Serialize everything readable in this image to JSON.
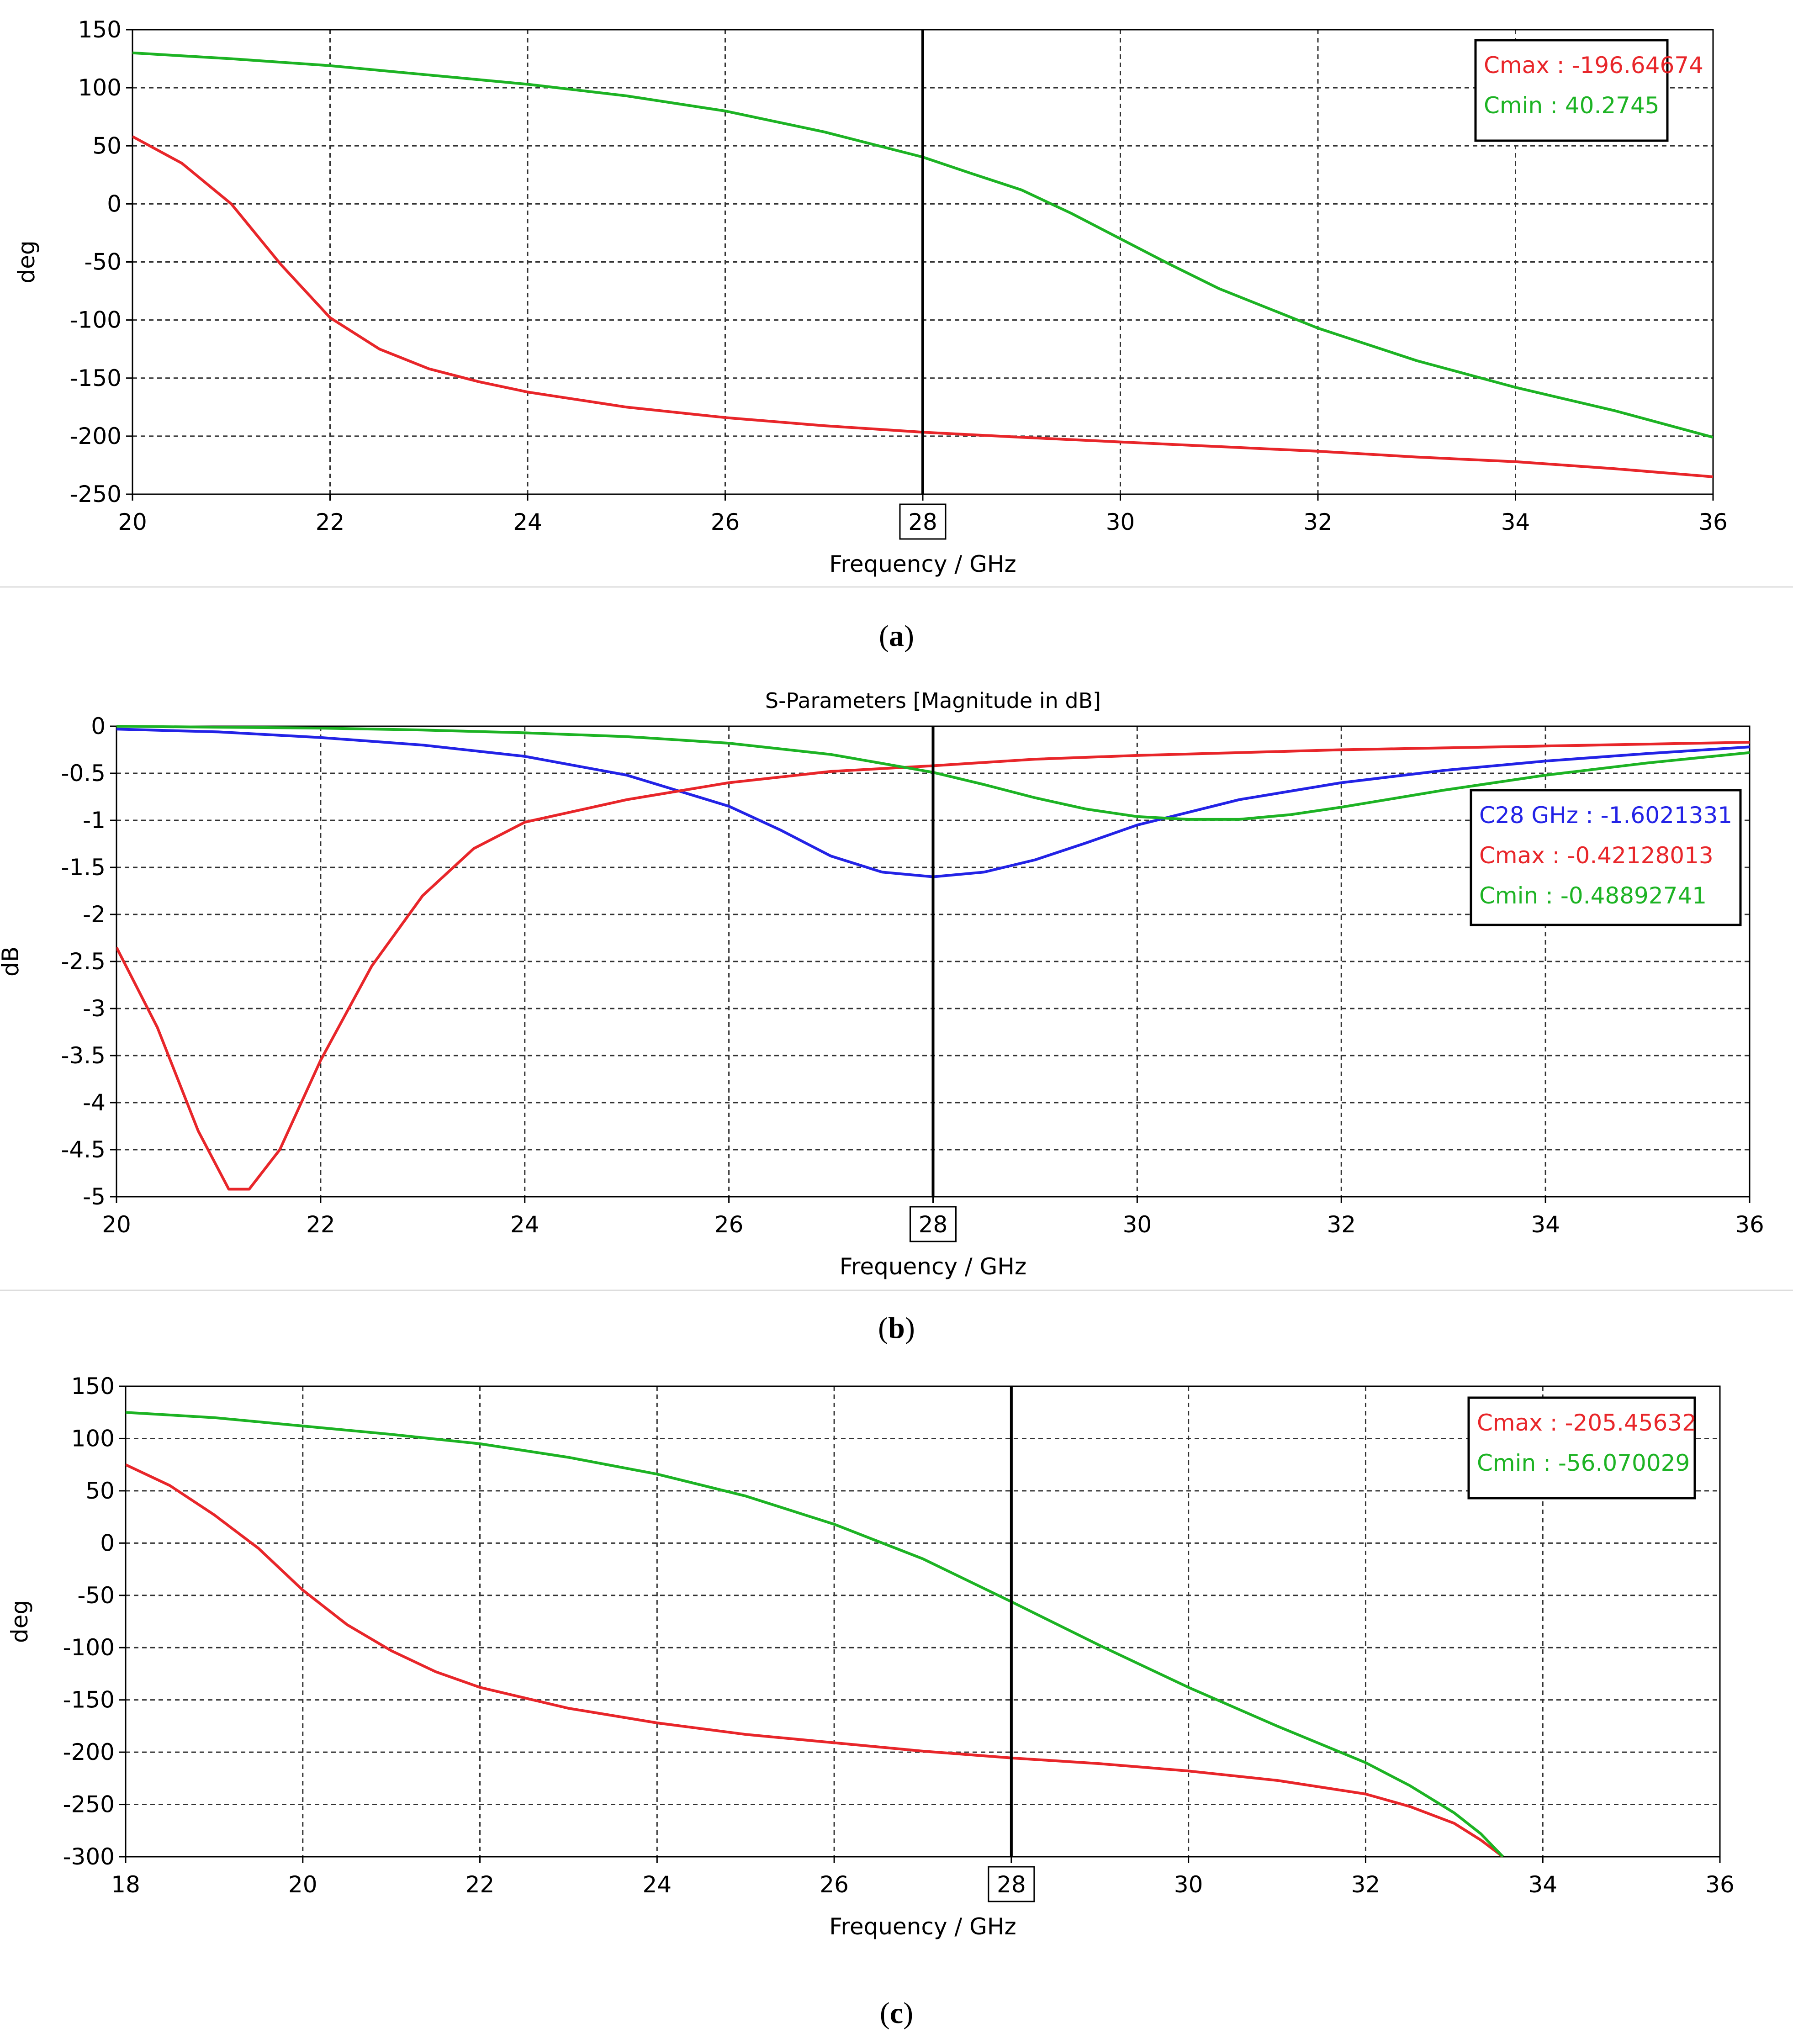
{
  "colors": {
    "red": "#e8262a",
    "green": "#1db324",
    "blue": "#2323e6",
    "grid": "#333333",
    "marker": "#000000"
  },
  "chart_data": [
    {
      "id": "a",
      "type": "line",
      "caption": "a",
      "title": "",
      "xlabel": "Frequency / GHz",
      "ylabel": "deg",
      "xlim": [
        20,
        36
      ],
      "ylim": [
        -250,
        150
      ],
      "xticks": [
        20,
        22,
        24,
        26,
        28,
        30,
        32,
        34,
        36
      ],
      "yticks": [
        150,
        100,
        50,
        0,
        -50,
        -100,
        -150,
        -200,
        -250
      ],
      "marker_x": 28,
      "marker_label": "28",
      "legend": [
        {
          "label": "Cmax : -196.64674",
          "color": "#e8262a"
        },
        {
          "label": "Cmin : 40.2745",
          "color": "#1db324"
        }
      ],
      "series": [
        {
          "name": "Cmax",
          "color": "#e8262a",
          "x": [
            20,
            20.5,
            21,
            21.5,
            22,
            22.5,
            23,
            23.5,
            24,
            25,
            26,
            27,
            28,
            29,
            30,
            31,
            32,
            33,
            34,
            35,
            36
          ],
          "y": [
            58,
            35,
            0,
            -52,
            -98,
            -125,
            -142,
            -153,
            -162,
            -175,
            -184,
            -191,
            -196.6,
            -201,
            -205,
            -209,
            -213,
            -218,
            -222,
            -228,
            -235
          ]
        },
        {
          "name": "Cmin",
          "color": "#1db324",
          "x": [
            20,
            21,
            22,
            23,
            24,
            25,
            26,
            27,
            28,
            28.5,
            29,
            29.5,
            30,
            30.5,
            31,
            32,
            33,
            34,
            35,
            36
          ],
          "y": [
            130,
            125,
            119,
            111,
            103,
            93,
            80,
            62,
            40.3,
            26,
            12,
            -8,
            -30,
            -52,
            -73,
            -107,
            -135,
            -158,
            -178,
            -201
          ]
        }
      ]
    },
    {
      "id": "b",
      "type": "line",
      "caption": "b",
      "title": "S-Parameters [Magnitude in dB]",
      "xlabel": "Frequency / GHz",
      "ylabel": "dB",
      "xlim": [
        20,
        36
      ],
      "ylim": [
        -5,
        0
      ],
      "xticks": [
        20,
        22,
        24,
        26,
        28,
        30,
        32,
        34,
        36
      ],
      "yticks": [
        "0",
        "-0.5",
        "-1",
        "-1.5",
        "-2",
        "-2.5",
        "-3",
        "-3.5",
        "-4",
        "-4.5",
        "-5"
      ],
      "marker_x": 28,
      "marker_label": "28",
      "legend": [
        {
          "label": "C28 GHz : -1.6021331",
          "color": "#2323e6"
        },
        {
          "label": "Cmax : -0.42128013",
          "color": "#e8262a"
        },
        {
          "label": "Cmin : -0.48892741",
          "color": "#1db324"
        }
      ],
      "series": [
        {
          "name": "C28 GHz",
          "color": "#2323e6",
          "x": [
            20,
            21,
            22,
            23,
            24,
            25,
            26,
            26.5,
            27,
            27.5,
            28,
            28.5,
            29,
            29.5,
            30,
            31,
            32,
            33,
            34,
            35,
            36
          ],
          "y": [
            -0.03,
            -0.06,
            -0.12,
            -0.2,
            -0.32,
            -0.52,
            -0.85,
            -1.1,
            -1.38,
            -1.55,
            -1.6,
            -1.55,
            -1.42,
            -1.24,
            -1.05,
            -0.78,
            -0.6,
            -0.47,
            -0.37,
            -0.29,
            -0.22
          ]
        },
        {
          "name": "Cmax",
          "color": "#e8262a",
          "x": [
            20,
            20.4,
            20.8,
            21.1,
            21.3,
            21.6,
            22,
            22.5,
            23,
            23.5,
            24,
            25,
            26,
            27,
            28,
            29,
            30,
            31,
            32,
            33,
            34,
            35,
            36
          ],
          "y": [
            -2.35,
            -3.2,
            -4.3,
            -4.92,
            -4.92,
            -4.5,
            -3.55,
            -2.55,
            -1.8,
            -1.3,
            -1.02,
            -0.78,
            -0.6,
            -0.48,
            -0.42,
            -0.35,
            -0.31,
            -0.28,
            -0.25,
            -0.23,
            -0.21,
            -0.19,
            -0.17
          ]
        },
        {
          "name": "Cmin",
          "color": "#1db324",
          "x": [
            20,
            21,
            22,
            23,
            24,
            25,
            26,
            27,
            28,
            28.5,
            29,
            29.5,
            30,
            30.5,
            31,
            31.5,
            32,
            33,
            34,
            35,
            36
          ],
          "y": [
            0,
            -0.01,
            -0.02,
            -0.04,
            -0.07,
            -0.11,
            -0.18,
            -0.3,
            -0.49,
            -0.62,
            -0.76,
            -0.88,
            -0.96,
            -0.99,
            -0.99,
            -0.94,
            -0.86,
            -0.68,
            -0.52,
            -0.39,
            -0.28
          ]
        }
      ]
    },
    {
      "id": "c",
      "type": "line",
      "caption": "c",
      "title": "",
      "xlabel": "Frequency / GHz",
      "ylabel": "deg",
      "xlim": [
        18,
        36
      ],
      "ylim": [
        -300,
        150
      ],
      "xticks": [
        18,
        20,
        22,
        24,
        26,
        28,
        30,
        32,
        34,
        36
      ],
      "yticks": [
        150,
        100,
        50,
        0,
        -50,
        -100,
        -150,
        -200,
        -250,
        -300
      ],
      "marker_x": 28,
      "marker_label": "28",
      "legend": [
        {
          "label": "Cmax : -205.45632",
          "color": "#e8262a"
        },
        {
          "label": "Cmin : -56.070029",
          "color": "#1db324"
        }
      ],
      "series": [
        {
          "name": "Cmax",
          "color": "#e8262a",
          "x": [
            18,
            18.5,
            19,
            19.5,
            20,
            20.5,
            21,
            21.5,
            22,
            23,
            24,
            25,
            26,
            27,
            28,
            29,
            30,
            31,
            32,
            32.5,
            33,
            33.3,
            33.55
          ],
          "y": [
            75,
            55,
            27,
            -5,
            -45,
            -78,
            -103,
            -123,
            -138,
            -158,
            -172,
            -183,
            -191,
            -199,
            -205.5,
            -211,
            -218,
            -227,
            -240,
            -252,
            -268,
            -284,
            -300
          ]
        },
        {
          "name": "Cmin",
          "color": "#1db324",
          "x": [
            18,
            19,
            20,
            21,
            22,
            23,
            24,
            25,
            26,
            27,
            28,
            29,
            30,
            31,
            32,
            32.5,
            33,
            33.3,
            33.55
          ],
          "y": [
            125,
            120,
            112,
            104,
            95,
            82,
            66,
            45,
            18,
            -15,
            -56.1,
            -98,
            -138,
            -175,
            -210,
            -232,
            -258,
            -278,
            -300
          ]
        }
      ]
    }
  ]
}
